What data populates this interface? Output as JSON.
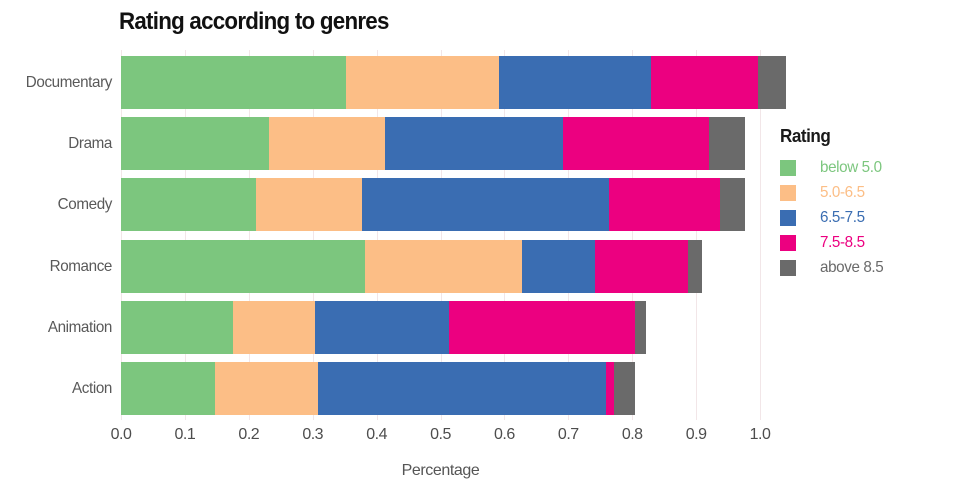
{
  "title": "Rating according to genres",
  "chart_data": {
    "type": "bar",
    "orientation": "horizontal",
    "stacked": true,
    "title": "Rating according to genres",
    "xlabel": "Percentage",
    "ylabel": "",
    "categories": [
      "Documentary",
      "Drama",
      "Comedy",
      "Romance",
      "Animation",
      "Action"
    ],
    "x_tick_values": [
      0.0,
      0.1,
      0.2,
      0.3,
      0.4,
      0.5,
      0.6,
      0.7,
      0.8,
      0.9,
      1.0
    ],
    "xlim": [
      0,
      1.05
    ],
    "grid": "vertical faint",
    "legend_title": "Rating",
    "legend_position": "right",
    "series": [
      {
        "name": "below 5.0",
        "color": "#7CC67E",
        "values": [
          0.352,
          0.231,
          0.212,
          0.382,
          0.176,
          0.147
        ]
      },
      {
        "name": "5.0-6.5",
        "color": "#FCBE86",
        "values": [
          0.239,
          0.182,
          0.165,
          0.246,
          0.128,
          0.161
        ]
      },
      {
        "name": "6.5-7.5",
        "color": "#3A6DB2",
        "values": [
          0.239,
          0.278,
          0.387,
          0.114,
          0.21,
          0.451
        ]
      },
      {
        "name": "7.5-8.5",
        "color": "#EC0080",
        "values": [
          0.167,
          0.229,
          0.173,
          0.145,
          0.29,
          0.013
        ]
      },
      {
        "name": "above 8.5",
        "color": "#6A6A6A",
        "values": [
          0.043,
          0.057,
          0.04,
          0.023,
          0.017,
          0.032
        ]
      }
    ]
  },
  "colors": {
    "title_text": "#111111",
    "category_label_text": "#595959",
    "tick_label_text": "#4d4d4d",
    "axis_title_text": "#555555",
    "gridline": "#f2e6e8",
    "background": "#ffffff"
  }
}
